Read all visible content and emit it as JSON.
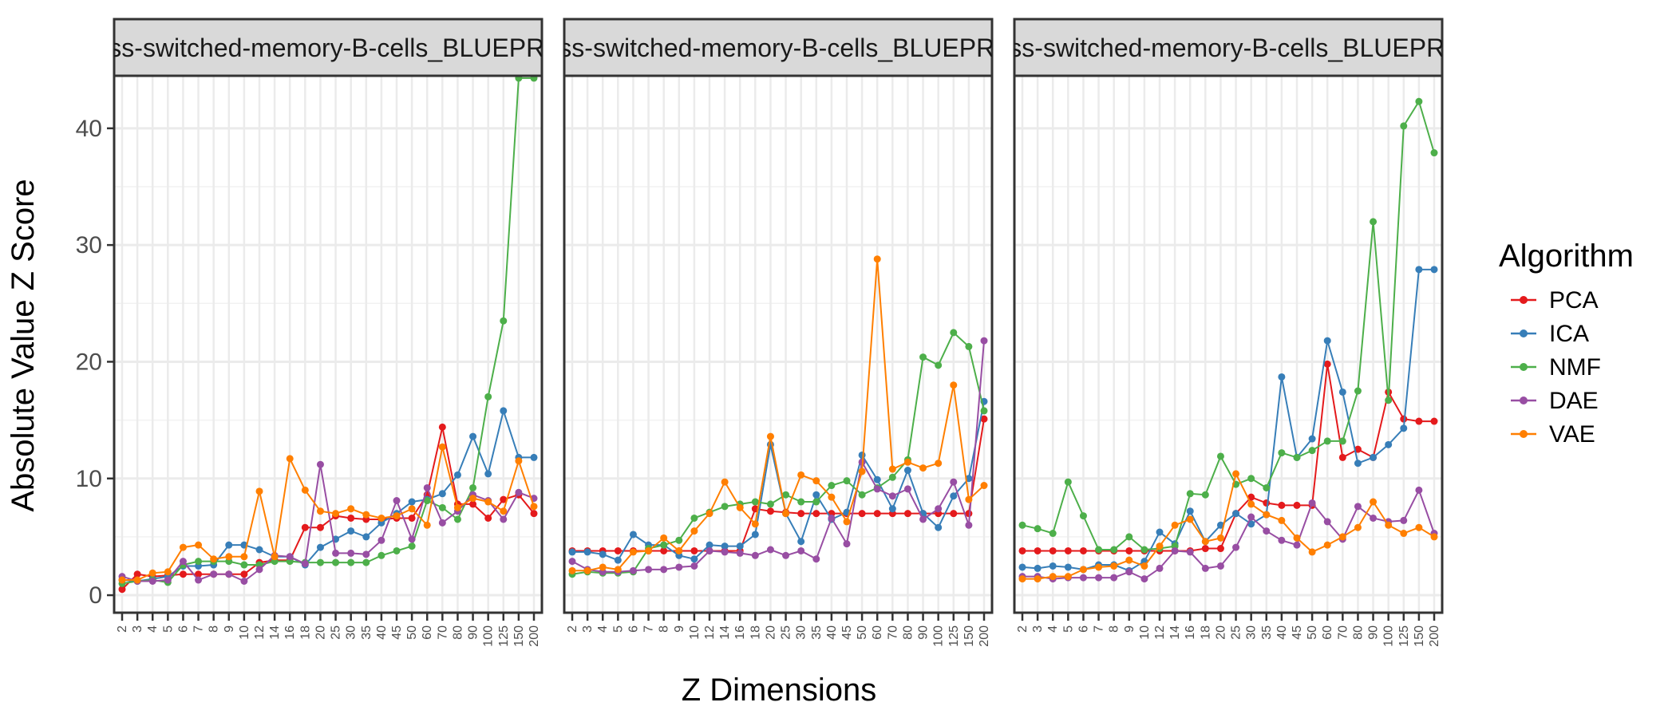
{
  "chart_data": {
    "type": "line",
    "facet_strips": [
      "Class-switched-memory-B-cells_BLUEPRINT",
      "Class-switched-memory-B-cells_BLUEPRINT",
      "Class-switched-memory-B-cells_BLUEPRINT"
    ],
    "xlabel": "Z Dimensions",
    "ylabel": "Absolute Value Z Score",
    "ylim": [
      -1.5,
      44.5
    ],
    "y_ticks": [
      0,
      10,
      20,
      30,
      40
    ],
    "categories": [
      "2",
      "3",
      "4",
      "5",
      "6",
      "7",
      "8",
      "9",
      "10",
      "12",
      "14",
      "16",
      "18",
      "20",
      "25",
      "30",
      "35",
      "40",
      "45",
      "50",
      "60",
      "70",
      "80",
      "90",
      "100",
      "125",
      "150",
      "200"
    ],
    "legend_title": "Algorithm",
    "legend_position": "right",
    "grid": true,
    "colors": {
      "PCA": "#e41a1c",
      "ICA": "#377eb8",
      "NMF": "#4daf4a",
      "DAE": "#984ea3",
      "VAE": "#ff7f00"
    },
    "panels": [
      {
        "series": [
          {
            "name": "PCA",
            "values": [
              0.5,
              1.8,
              1.6,
              1.7,
              1.8,
              1.8,
              1.8,
              1.8,
              1.8,
              2.8,
              3.0,
              3.0,
              5.8,
              5.8,
              6.8,
              6.6,
              6.5,
              6.5,
              6.6,
              6.6,
              8.6,
              14.4,
              7.8,
              7.8,
              6.6,
              8.2,
              8.6,
              7.0
            ]
          },
          {
            "name": "ICA",
            "values": [
              1.3,
              1.2,
              1.4,
              1.6,
              2.5,
              2.5,
              2.6,
              4.3,
              4.3,
              3.9,
              3.3,
              3.3,
              2.6,
              4.1,
              4.8,
              5.5,
              5.0,
              6.2,
              7.0,
              8.0,
              8.2,
              8.7,
              10.3,
              13.6,
              10.4,
              15.8,
              11.8,
              11.8
            ]
          },
          {
            "name": "NMF",
            "values": [
              1.0,
              1.2,
              1.3,
              1.1,
              2.6,
              2.9,
              2.9,
              2.9,
              2.6,
              2.6,
              2.9,
              2.9,
              2.8,
              2.8,
              2.8,
              2.8,
              2.8,
              3.4,
              3.8,
              4.2,
              8.1,
              7.5,
              6.5,
              9.2,
              17.0,
              23.5,
              44.3,
              44.3
            ]
          },
          {
            "name": "DAE",
            "values": [
              1.6,
              1.2,
              1.2,
              1.3,
              2.9,
              1.3,
              1.8,
              1.8,
              1.2,
              2.2,
              3.4,
              3.3,
              2.7,
              11.2,
              3.6,
              3.6,
              3.5,
              4.7,
              8.1,
              4.8,
              9.2,
              6.2,
              7.2,
              8.6,
              8.1,
              6.5,
              8.8,
              8.3
            ]
          },
          {
            "name": "VAE",
            "values": [
              1.3,
              1.3,
              1.9,
              2.0,
              4.1,
              4.3,
              3.1,
              3.3,
              3.3,
              8.9,
              3.3,
              11.7,
              9.0,
              7.2,
              7.0,
              7.4,
              6.9,
              6.6,
              6.8,
              7.4,
              6.0,
              12.7,
              7.5,
              8.3,
              8.0,
              7.2,
              11.5,
              7.6
            ]
          }
        ]
      },
      {
        "series": [
          {
            "name": "PCA",
            "values": [
              3.8,
              3.8,
              3.8,
              3.8,
              3.8,
              3.8,
              3.8,
              3.8,
              3.8,
              3.8,
              3.8,
              3.8,
              7.4,
              7.2,
              7.1,
              7.0,
              7.0,
              7.0,
              7.0,
              7.0,
              7.0,
              7.0,
              7.0,
              7.0,
              7.0,
              7.0,
              7.0,
              15.1
            ]
          },
          {
            "name": "ICA",
            "values": [
              3.7,
              3.7,
              3.5,
              3.0,
              5.2,
              4.3,
              4.3,
              3.4,
              3.1,
              4.3,
              4.2,
              4.2,
              5.2,
              12.9,
              7.0,
              4.6,
              8.6,
              6.5,
              7.1,
              12.0,
              9.9,
              7.4,
              10.7,
              7.0,
              5.8,
              8.5,
              10.0,
              16.6
            ]
          },
          {
            "name": "NMF",
            "values": [
              1.8,
              2.0,
              1.9,
              1.9,
              2.0,
              4.0,
              4.3,
              4.7,
              6.6,
              7.1,
              7.6,
              7.8,
              8.0,
              7.8,
              8.6,
              8.0,
              8.0,
              9.4,
              9.8,
              8.6,
              9.2,
              10.1,
              11.6,
              20.4,
              19.7,
              22.5,
              21.3,
              15.8
            ]
          },
          {
            "name": "DAE",
            "values": [
              2.9,
              2.2,
              2.0,
              2.0,
              2.1,
              2.2,
              2.2,
              2.4,
              2.5,
              3.8,
              3.7,
              3.6,
              3.4,
              3.9,
              3.4,
              3.8,
              3.1,
              6.6,
              4.4,
              11.4,
              9.1,
              8.5,
              9.1,
              6.5,
              7.4,
              9.7,
              6.0,
              21.8
            ]
          },
          {
            "name": "VAE",
            "values": [
              2.1,
              2.1,
              2.4,
              2.2,
              3.7,
              3.8,
              4.9,
              3.8,
              5.5,
              7.0,
              9.7,
              7.5,
              6.1,
              13.6,
              7.0,
              10.3,
              9.8,
              8.4,
              6.3,
              10.6,
              28.8,
              10.8,
              11.4,
              10.9,
              11.3,
              18.0,
              8.2,
              9.4
            ]
          }
        ]
      },
      {
        "series": [
          {
            "name": "PCA",
            "values": [
              3.8,
              3.8,
              3.8,
              3.8,
              3.8,
              3.8,
              3.8,
              3.8,
              3.8,
              3.8,
              3.8,
              3.8,
              4.0,
              4.0,
              7.0,
              8.4,
              7.9,
              7.7,
              7.7,
              7.7,
              19.8,
              11.8,
              12.5,
              11.8,
              17.4,
              15.1,
              14.9,
              14.9
            ]
          },
          {
            "name": "ICA",
            "values": [
              2.4,
              2.3,
              2.5,
              2.4,
              2.2,
              2.6,
              2.6,
              2.1,
              2.9,
              5.4,
              4.4,
              7.2,
              4.6,
              6.0,
              7.0,
              6.1,
              6.9,
              18.7,
              11.8,
              13.4,
              21.8,
              17.4,
              11.3,
              11.8,
              12.9,
              14.3,
              27.9,
              27.9
            ]
          },
          {
            "name": "NMF",
            "values": [
              6.0,
              5.7,
              5.3,
              9.7,
              6.8,
              3.9,
              3.9,
              5.0,
              3.9,
              4.0,
              4.2,
              8.7,
              8.6,
              11.9,
              9.5,
              10.0,
              9.2,
              12.2,
              11.8,
              12.4,
              13.2,
              13.2,
              17.5,
              32.0,
              16.7,
              40.2,
              42.3,
              37.9
            ]
          },
          {
            "name": "DAE",
            "values": [
              1.6,
              1.6,
              1.4,
              1.5,
              1.5,
              1.5,
              1.5,
              2.0,
              1.4,
              2.3,
              3.8,
              3.7,
              2.3,
              2.5,
              4.1,
              6.7,
              5.5,
              4.7,
              4.3,
              7.9,
              6.3,
              4.8,
              7.6,
              6.6,
              6.3,
              6.4,
              9.0,
              5.3
            ]
          },
          {
            "name": "VAE",
            "values": [
              1.4,
              1.4,
              1.6,
              1.6,
              2.2,
              2.4,
              2.5,
              3.0,
              2.5,
              4.2,
              6.0,
              6.5,
              4.6,
              4.9,
              10.4,
              7.8,
              6.9,
              6.4,
              4.9,
              3.7,
              4.3,
              5.0,
              5.8,
              8.0,
              6.0,
              5.3,
              5.8,
              5.0
            ]
          }
        ]
      }
    ]
  }
}
